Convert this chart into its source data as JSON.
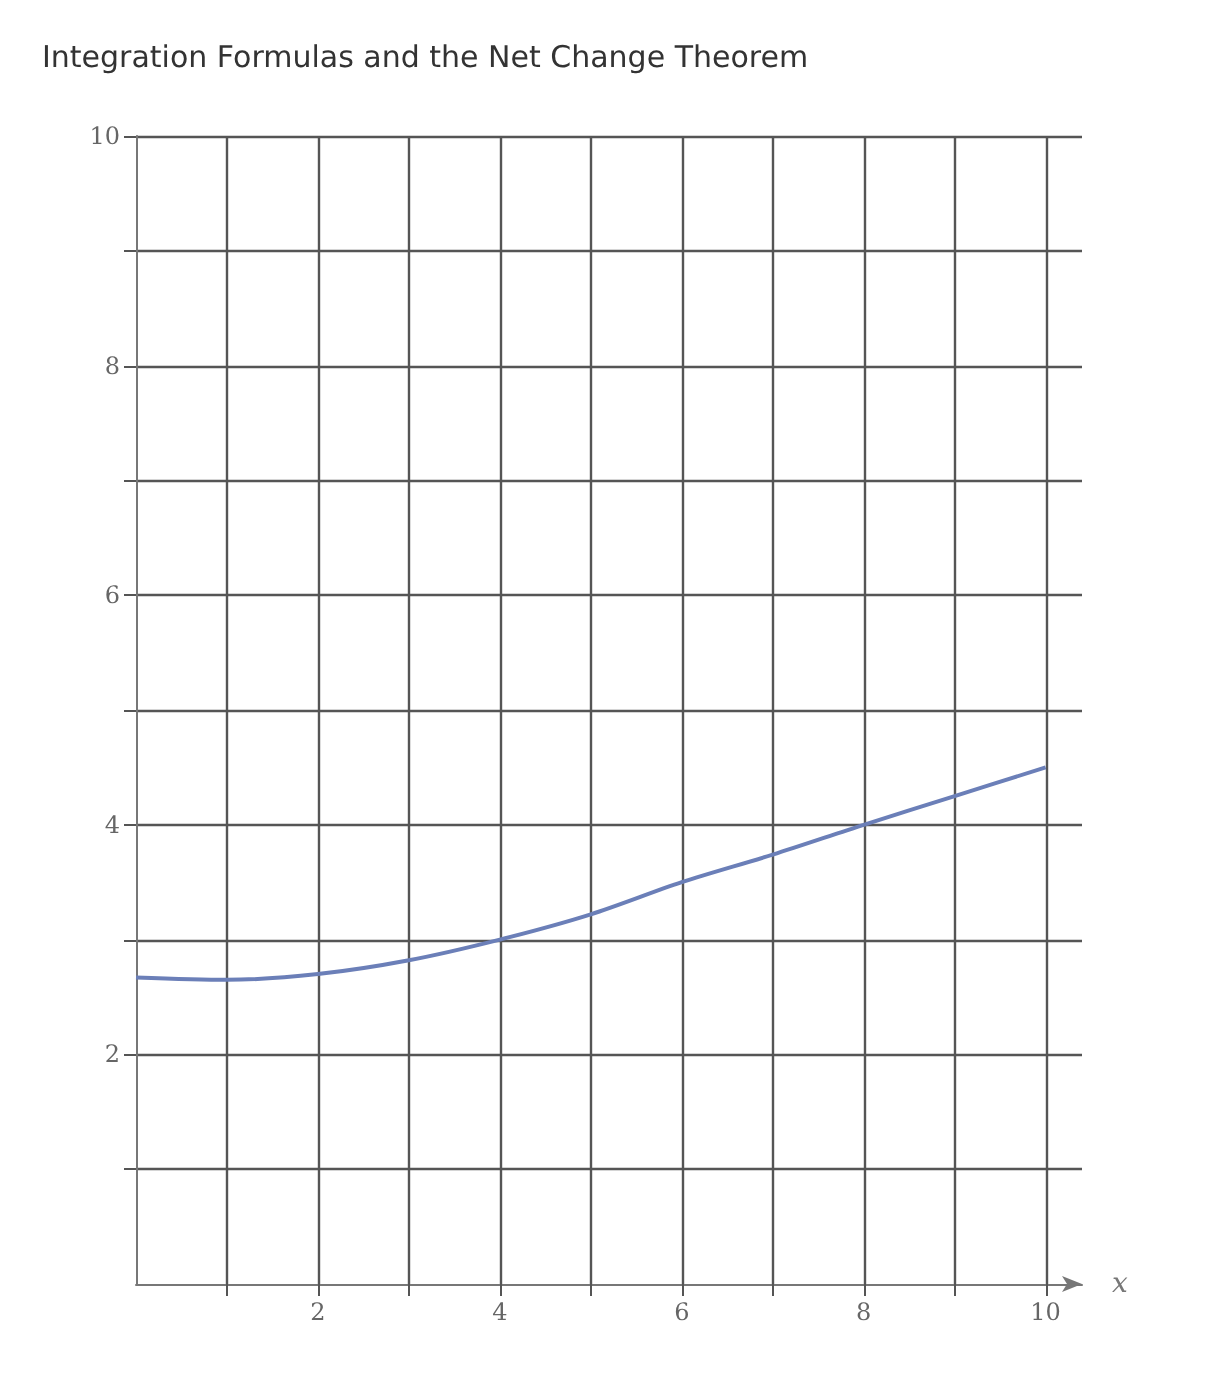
{
  "chart_data": {
    "type": "line",
    "title": "Integration Formulas and the Net Change Theorem",
    "xlabel": "x",
    "x": [
      0,
      1,
      2,
      3,
      4,
      5,
      6,
      7,
      8,
      9,
      10
    ],
    "series": [
      {
        "color": "#6b7fb8",
        "values": [
          2.67,
          2.65,
          2.7,
          2.82,
          3.0,
          3.22,
          3.5,
          3.74,
          4.0,
          4.25,
          4.5
        ]
      }
    ],
    "xlim": [
      0,
      10.4
    ],
    "ylim": [
      0,
      10
    ],
    "xticks": [
      {
        "value": 1,
        "label": null
      },
      2,
      {
        "value": 3,
        "label": null
      },
      4,
      {
        "value": 5,
        "label": null
      },
      6,
      {
        "value": 7,
        "label": null
      },
      8,
      {
        "value": 9,
        "label": null
      },
      10
    ],
    "yticks": [
      {
        "value": 1,
        "label": null
      },
      2,
      {
        "value": 3,
        "label": null
      },
      4,
      {
        "value": 5,
        "label": null
      },
      6,
      {
        "value": 7,
        "label": null
      },
      8,
      {
        "value": 9,
        "label": null
      },
      10
    ],
    "grid": true,
    "marker": "none",
    "line_style": "solid"
  }
}
